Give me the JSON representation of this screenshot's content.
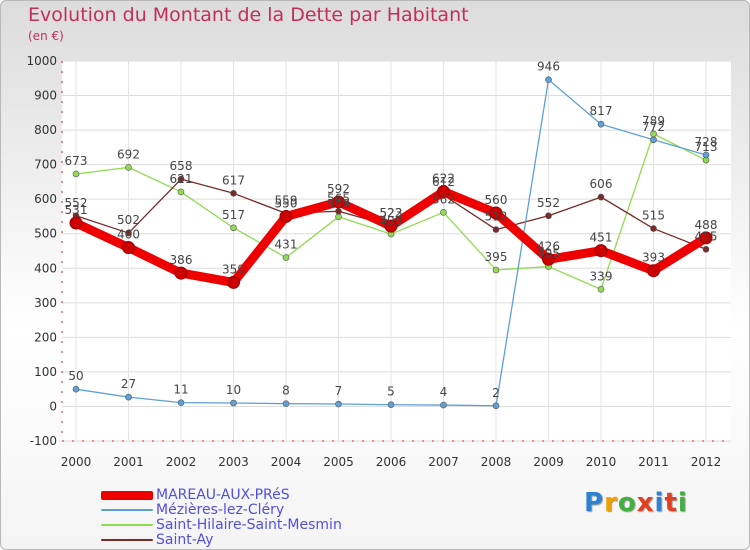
{
  "header": {
    "title": "Evolution du Montant de la Dette par Habitant",
    "unit": "(en €)"
  },
  "logo": {
    "text": "Proxiti",
    "colors": [
      "#3080d0",
      "#f0a000",
      "#40b040",
      "#e04020",
      "#3080d0",
      "#e04020",
      "#40b040"
    ]
  },
  "chart_data": {
    "type": "line",
    "title": "Evolution du Montant de la Dette par Habitant",
    "ylabel": "(en €)",
    "xlabel": "",
    "x": [
      "2000",
      "2001",
      "2002",
      "2003",
      "2004",
      "2005",
      "2006",
      "2007",
      "2008",
      "2009",
      "2010",
      "2011",
      "2012"
    ],
    "ylim": [
      -100,
      1000
    ],
    "yticks": [
      "-100",
      "0",
      "100",
      "200",
      "300",
      "400",
      "500",
      "600",
      "700",
      "800",
      "900",
      "1000"
    ],
    "grid": true,
    "legend_position": "bottom-left",
    "series": [
      {
        "name": "Saint-Hilaire-Saint-Mesmin",
        "color": "#90dc50",
        "values": [
          673,
          692,
          621,
          517,
          431,
          549,
          499,
          562,
          395,
          405,
          339,
          789,
          713
        ],
        "labels": [
          "673",
          "692",
          "621",
          "517",
          "431",
          "549",
          "499",
          "562",
          "395",
          "405",
          "339",
          "789",
          "713"
        ]
      },
      {
        "name": "Saint-Ay",
        "color": "#7a2a2a",
        "values": [
          552,
          502,
          658,
          617,
          559,
          565,
          523,
          612,
          512,
          552,
          606,
          515,
          455
        ],
        "labels": [
          "552",
          "502",
          "658",
          "617",
          "559",
          "565",
          "523",
          "612",
          "512",
          "552",
          "606",
          "515",
          "455"
        ]
      },
      {
        "name": "Mézières-lez-Cléry",
        "color": "#5fa0d8",
        "values": [
          50,
          27,
          11,
          10,
          8,
          7,
          5,
          4,
          2,
          946,
          817,
          772,
          728
        ],
        "labels": [
          "50",
          "27",
          "11",
          "10",
          "8",
          "7",
          "5",
          "4",
          "2",
          "946",
          "817",
          "772",
          "728"
        ]
      },
      {
        "name": "MAREAU-AUX-PRéS",
        "color": "#ee0000",
        "values": [
          531,
          460,
          386,
          359,
          550,
          592,
          522,
          622,
          560,
          426,
          451,
          393,
          488
        ],
        "labels": [
          "531",
          "460",
          "386",
          "359",
          "550",
          "592",
          "522",
          "622",
          "560",
          "426",
          "451",
          "393",
          "488"
        ]
      }
    ]
  },
  "legend": [
    {
      "name": "MAREAU-AUX-PRéS",
      "color": "#ee0000",
      "thickness": 9
    },
    {
      "name": "Mézières-lez-Cléry",
      "color": "#5fa0d8",
      "thickness": 2
    },
    {
      "name": "Saint-Hilaire-Saint-Mesmin",
      "color": "#90dc50",
      "thickness": 2
    },
    {
      "name": "Saint-Ay",
      "color": "#7a2a2a",
      "thickness": 2
    }
  ]
}
